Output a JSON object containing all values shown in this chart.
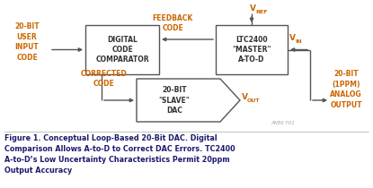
{
  "bg_color": "#ffffff",
  "title_text": "Figure 1. Conceptual Loop-Based 20-Bit DAC. Digital\nComparison Allows A-to-D to Correct DAC Errors. TC2400\nA-to-D’s Low Uncertainty Characteristics Permit 20ppm\nOutput Accuracy",
  "box1_lines": [
    "DIGITAL",
    "CODE",
    "COMPARATOR"
  ],
  "box2_lines": [
    "LTC2400",
    "\"MASTER\"",
    "A-TO-D"
  ],
  "box3_lines": [
    "20-BIT",
    "\"SLAVE\"",
    "DAC"
  ],
  "label_left": [
    "20-BIT",
    "USER",
    "INPUT",
    "CODE"
  ],
  "label_feedback": [
    "FEEDBACK",
    "CODE"
  ],
  "label_corrected": [
    "CORRECTED",
    "CODE"
  ],
  "label_right": [
    "20-BIT",
    "(1PPM)",
    "ANALOG",
    "OUTPUT"
  ],
  "vref": "V",
  "vref_sub": "REF",
  "vin": "V",
  "vin_sub": "IN",
  "vout": "V",
  "vout_sub": "OUT",
  "watermark": "AN86 F01",
  "orange": "#cc6600",
  "dark": "#333333",
  "line_color": "#555555",
  "caption_color": "#1a1a6e"
}
